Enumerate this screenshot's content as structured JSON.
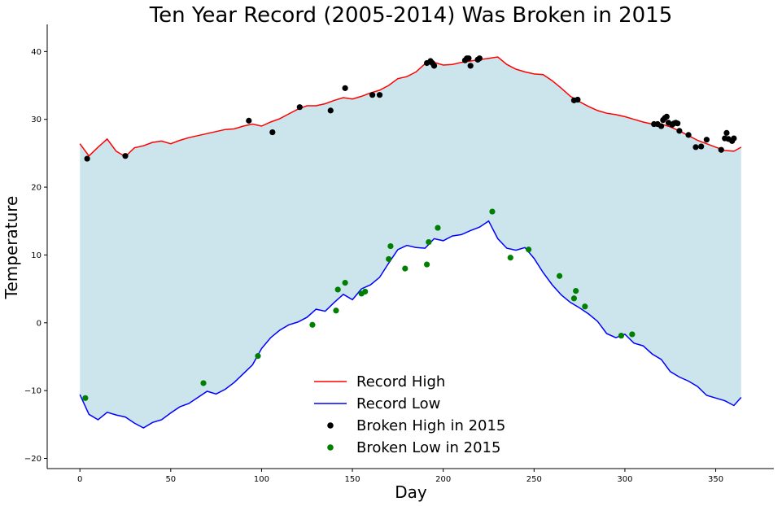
{
  "chart_data": {
    "type": "line",
    "title": "Ten Year Record (2005-2014) Was Broken in 2015",
    "xlabel": "Day",
    "ylabel": "Temperature",
    "xlim": [
      -18,
      382
    ],
    "ylim": [
      -21.5,
      44
    ],
    "xticks": [
      0,
      50,
      100,
      150,
      200,
      250,
      300,
      350
    ],
    "yticks": [
      -20,
      -10,
      0,
      10,
      20,
      30,
      40
    ],
    "grid": false,
    "legend_position": "bottom-center",
    "fill_between_color": "#cce5ec",
    "series": [
      {
        "name": "Record High",
        "color": "#ff0000",
        "x": [
          0,
          5,
          10,
          15,
          20,
          25,
          30,
          35,
          40,
          45,
          50,
          55,
          60,
          65,
          70,
          75,
          80,
          85,
          90,
          95,
          100,
          105,
          110,
          115,
          120,
          125,
          130,
          135,
          140,
          145,
          150,
          155,
          160,
          165,
          170,
          175,
          180,
          185,
          190,
          195,
          200,
          205,
          210,
          215,
          220,
          225,
          230,
          235,
          240,
          245,
          250,
          255,
          260,
          265,
          270,
          275,
          280,
          285,
          290,
          295,
          300,
          305,
          310,
          315,
          320,
          325,
          330,
          335,
          340,
          345,
          350,
          355,
          360,
          364
        ],
        "values": [
          26.4,
          24.6,
          25.9,
          27.1,
          25.3,
          24.5,
          25.8,
          26.1,
          26.6,
          26.8,
          26.4,
          26.9,
          27.3,
          27.6,
          27.9,
          28.2,
          28.5,
          28.6,
          29.0,
          29.3,
          29.0,
          29.6,
          30.1,
          30.8,
          31.5,
          32.0,
          32.0,
          32.3,
          32.8,
          33.2,
          33.0,
          33.4,
          33.9,
          34.3,
          35.0,
          36.0,
          36.3,
          37.0,
          38.2,
          38.4,
          38.0,
          38.1,
          38.4,
          38.6,
          38.8,
          39.0,
          39.2,
          38.1,
          37.4,
          37.0,
          36.7,
          36.6,
          35.7,
          34.6,
          33.4,
          32.6,
          31.9,
          31.3,
          30.9,
          30.7,
          30.4,
          30.0,
          29.6,
          29.3,
          29.3,
          28.9,
          28.3,
          27.6,
          26.9,
          26.4,
          25.9,
          25.4,
          25.3,
          25.9
        ]
      },
      {
        "name": "Record Low",
        "color": "#0000ff",
        "x": [
          0,
          5,
          10,
          15,
          20,
          25,
          30,
          35,
          40,
          45,
          50,
          55,
          60,
          65,
          70,
          75,
          80,
          85,
          90,
          95,
          100,
          105,
          110,
          115,
          120,
          125,
          130,
          135,
          140,
          145,
          150,
          155,
          160,
          165,
          170,
          175,
          180,
          185,
          190,
          195,
          200,
          205,
          210,
          215,
          220,
          225,
          230,
          235,
          240,
          245,
          250,
          255,
          260,
          265,
          270,
          275,
          280,
          285,
          290,
          295,
          300,
          305,
          310,
          315,
          320,
          325,
          330,
          335,
          340,
          345,
          350,
          355,
          360,
          364
        ],
        "values": [
          -10.6,
          -13.5,
          -14.3,
          -13.2,
          -13.6,
          -13.9,
          -14.8,
          -15.5,
          -14.7,
          -14.3,
          -13.3,
          -12.4,
          -11.9,
          -11.0,
          -10.1,
          -10.5,
          -9.8,
          -8.8,
          -7.5,
          -6.2,
          -3.8,
          -2.2,
          -1.1,
          -0.3,
          0.1,
          0.8,
          2.0,
          1.7,
          3.0,
          4.2,
          3.4,
          5.0,
          5.6,
          6.7,
          8.8,
          10.8,
          11.4,
          11.1,
          11.0,
          12.4,
          12.1,
          12.8,
          13.0,
          13.6,
          14.1,
          15.0,
          12.4,
          11.0,
          10.7,
          11.1,
          9.5,
          7.4,
          5.6,
          4.1,
          3.0,
          2.2,
          1.3,
          0.2,
          -1.6,
          -2.2,
          -1.7,
          -3.0,
          -3.4,
          -4.6,
          -5.4,
          -7.2,
          -8.0,
          -8.6,
          -9.4,
          -10.7,
          -11.1,
          -11.5,
          -12.2,
          -11.0
        ]
      },
      {
        "name": "Broken High in 2015",
        "color": "#000000",
        "type": "scatter",
        "x": [
          4,
          25,
          93,
          106,
          121,
          138,
          146,
          161,
          165,
          191,
          193,
          194,
          195,
          212,
          213,
          214,
          215,
          219,
          220,
          272,
          274,
          316,
          318,
          320,
          321,
          322,
          323,
          324,
          326,
          327,
          328,
          329,
          330,
          335,
          339,
          342,
          345,
          353,
          355,
          356,
          357,
          359,
          360
        ],
        "values": [
          24.2,
          24.6,
          29.8,
          28.1,
          31.8,
          31.3,
          34.6,
          33.6,
          33.6,
          38.3,
          38.6,
          38.3,
          37.9,
          38.7,
          39.0,
          39.0,
          37.9,
          38.8,
          39.0,
          32.8,
          32.9,
          29.3,
          29.3,
          29.0,
          29.9,
          30.2,
          30.4,
          29.5,
          29.2,
          29.4,
          29.5,
          29.4,
          28.3,
          27.7,
          25.9,
          26.0,
          27.0,
          25.5,
          27.2,
          28.0,
          27.1,
          26.8,
          27.2
        ]
      },
      {
        "name": "Broken Low in 2015",
        "color": "#008000",
        "type": "scatter",
        "x": [
          3,
          68,
          98,
          128,
          141,
          142,
          146,
          155,
          157,
          170,
          171,
          179,
          191,
          192,
          197,
          227,
          237,
          247,
          264,
          272,
          273,
          278,
          298,
          304
        ],
        "values": [
          -11.1,
          -8.9,
          -4.9,
          -0.3,
          1.8,
          4.9,
          5.9,
          4.3,
          4.6,
          9.4,
          11.3,
          8.0,
          8.6,
          11.9,
          14.0,
          16.4,
          9.6,
          10.8,
          6.9,
          3.6,
          4.7,
          2.4,
          -1.9,
          -1.7
        ]
      }
    ]
  }
}
